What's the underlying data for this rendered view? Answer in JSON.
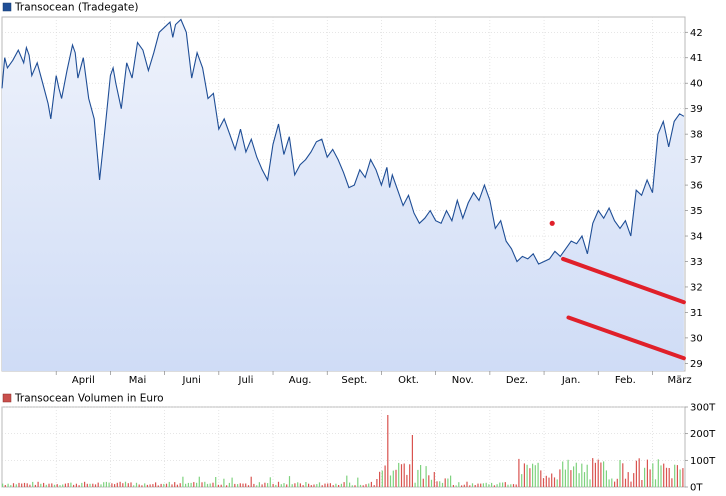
{
  "chart_data": [
    {
      "type": "area",
      "legend": "Transocean (Tradegate)",
      "legend_placement": "top-left",
      "grid": true,
      "colors": {
        "line": "#1f4e96",
        "fill_top": "#e8eefa",
        "fill_bottom": "#cfdcf6",
        "annotation": "#e0202a",
        "legend_swatch": "#1f4e96"
      },
      "xlabels": [
        "April",
        "Mai",
        "Juni",
        "Juli",
        "Aug.",
        "Sept.",
        "Okt.",
        "Nov.",
        "Dez.",
        "Jan.",
        "Feb.",
        "März"
      ],
      "y_ticks": [
        "29",
        "30",
        "31",
        "32",
        "33",
        "34",
        "35",
        "36",
        "37",
        "38",
        "39",
        "40",
        "41",
        "42"
      ],
      "ylim": [
        28.7,
        42.6
      ],
      "x_range": [
        0,
        12.6
      ],
      "x_unit": "months since start of March",
      "x": [
        0.0,
        0.05,
        0.1,
        0.2,
        0.3,
        0.4,
        0.45,
        0.5,
        0.55,
        0.65,
        0.75,
        0.85,
        0.9,
        1.0,
        1.05,
        1.1,
        1.2,
        1.3,
        1.35,
        1.4,
        1.5,
        1.6,
        1.7,
        1.8,
        1.9,
        2.0,
        2.05,
        2.1,
        2.2,
        2.3,
        2.4,
        2.5,
        2.6,
        2.7,
        2.8,
        2.9,
        3.0,
        3.1,
        3.15,
        3.2,
        3.3,
        3.4,
        3.5,
        3.6,
        3.7,
        3.8,
        3.9,
        4.0,
        4.1,
        4.2,
        4.3,
        4.4,
        4.5,
        4.6,
        4.7,
        4.8,
        4.9,
        5.0,
        5.1,
        5.2,
        5.3,
        5.4,
        5.5,
        5.6,
        5.7,
        5.8,
        5.9,
        6.0,
        6.1,
        6.2,
        6.3,
        6.4,
        6.5,
        6.6,
        6.7,
        6.8,
        6.9,
        7.0,
        7.1,
        7.15,
        7.2,
        7.3,
        7.4,
        7.5,
        7.6,
        7.7,
        7.8,
        7.9,
        8.0,
        8.1,
        8.2,
        8.3,
        8.4,
        8.5,
        8.6,
        8.7,
        8.8,
        8.9,
        9.0,
        9.1,
        9.2,
        9.3,
        9.4,
        9.5,
        9.6,
        9.7,
        9.8,
        9.9,
        10.0,
        10.1,
        10.2,
        10.3,
        10.4,
        10.5,
        10.6,
        10.7,
        10.8,
        10.9,
        11.0,
        11.1,
        11.2,
        11.3,
        11.4,
        11.5,
        11.6,
        11.7,
        11.8,
        11.9,
        12.0,
        12.1,
        12.2,
        12.3,
        12.4,
        12.5,
        12.58
      ],
      "y": [
        39.8,
        41.0,
        40.6,
        40.9,
        41.3,
        40.8,
        41.4,
        41.1,
        40.3,
        40.8,
        40.0,
        39.2,
        38.6,
        40.3,
        39.8,
        39.4,
        40.5,
        41.5,
        41.2,
        40.2,
        41.0,
        39.4,
        38.6,
        36.2,
        38.2,
        40.3,
        40.6,
        40.0,
        39.0,
        40.8,
        40.2,
        41.6,
        41.3,
        40.5,
        41.2,
        42.0,
        42.2,
        42.4,
        41.8,
        42.3,
        42.5,
        42.0,
        40.2,
        41.2,
        40.6,
        39.4,
        39.6,
        38.2,
        38.6,
        38.0,
        37.4,
        38.2,
        37.3,
        37.8,
        37.1,
        36.6,
        36.2,
        37.6,
        38.4,
        37.2,
        37.9,
        36.4,
        36.8,
        37.0,
        37.3,
        37.7,
        37.8,
        37.1,
        37.4,
        37.0,
        36.5,
        35.9,
        36.0,
        36.6,
        36.3,
        37.0,
        36.6,
        36.0,
        36.7,
        35.9,
        36.4,
        35.8,
        35.2,
        35.6,
        34.9,
        34.5,
        34.7,
        35.0,
        34.6,
        34.5,
        35.0,
        34.6,
        35.4,
        34.7,
        35.3,
        35.7,
        35.4,
        36.0,
        35.4,
        34.3,
        34.6,
        33.8,
        33.5,
        33.0,
        33.2,
        33.1,
        33.3,
        32.9,
        33.0,
        33.1,
        33.4,
        33.2,
        33.5,
        33.8,
        33.7,
        34.0,
        33.3,
        34.5,
        35.0,
        34.7,
        35.1,
        34.6,
        34.3,
        34.6,
        34.0,
        35.8,
        35.6,
        36.2,
        35.7,
        38.0,
        38.5,
        37.5,
        38.5,
        38.8,
        38.7
      ]
    },
    {
      "type": "bar",
      "legend": "Transocean Volumen in Euro",
      "legend_placement": "top-left",
      "y_ticks": [
        "0T",
        "100T",
        "200T",
        "300T"
      ],
      "ylim": [
        0,
        300
      ],
      "colors": {
        "up": "#7ed27e",
        "down": "#d9534f",
        "legend_swatch": "#c9504c"
      }
    }
  ]
}
